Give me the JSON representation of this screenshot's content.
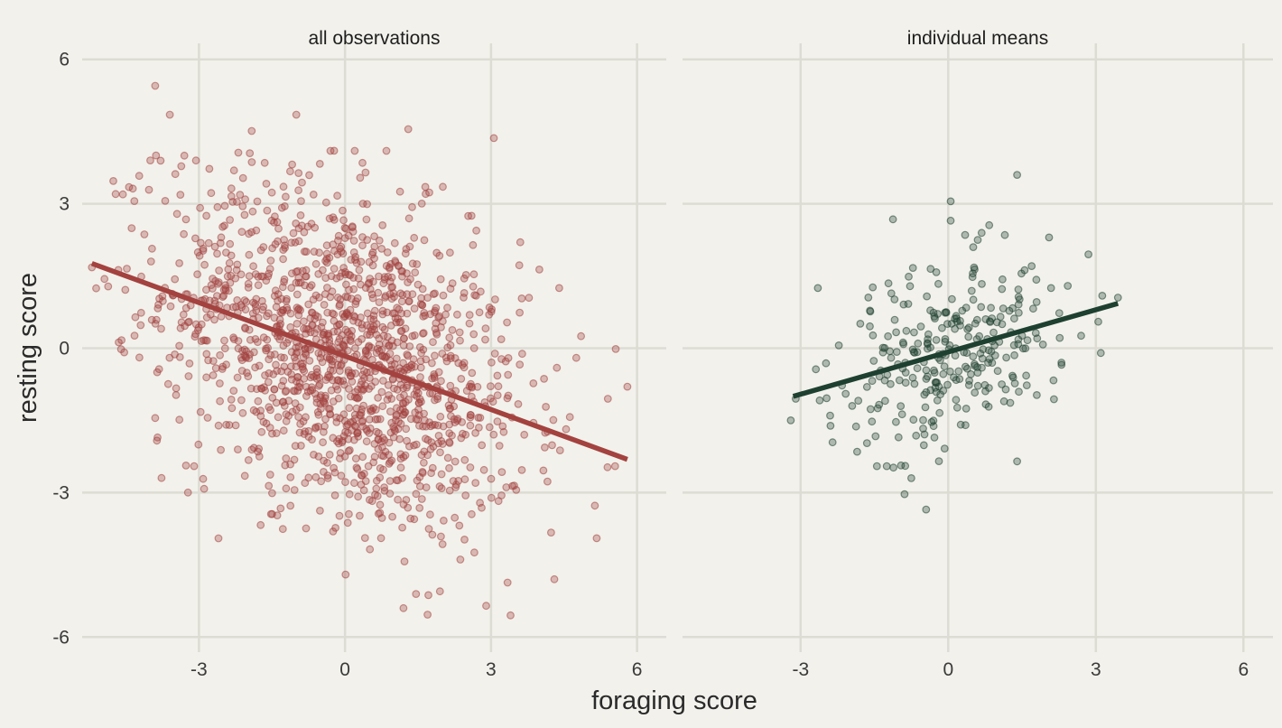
{
  "chart_data": {
    "type": "scatter",
    "xlabel": "foraging score",
    "ylabel": "resting score",
    "xlim": [
      -5.4,
      6.6
    ],
    "ylim": [
      -6.4,
      6.4
    ],
    "x_ticks": [
      "-3",
      "0",
      "3",
      "6"
    ],
    "y_ticks": [
      "6",
      "3",
      "0",
      "-3",
      "-6"
    ],
    "grid": true,
    "panels": [
      {
        "title": "all observations",
        "color": "#a3423f",
        "n_points": 1500,
        "x_range": [
          -5.2,
          5.8
        ],
        "y_range": [
          -5.6,
          5.5
        ],
        "fit_line": {
          "x": [
            -5.2,
            5.8
          ],
          "y": [
            1.76,
            -2.31
          ]
        },
        "points": [
          [
            -3.9,
            5.45
          ],
          [
            -2.6,
            -3.95
          ],
          [
            1.2,
            -5.4
          ],
          [
            3.4,
            -5.55
          ],
          [
            -3.6,
            4.85
          ],
          [
            5.8,
            -0.8
          ],
          [
            5.4,
            -1.05
          ],
          [
            4.3,
            -4.8
          ],
          [
            -4.6,
            -0.02
          ],
          [
            -5.2,
            1.68
          ],
          [
            2.6,
            2.75
          ],
          [
            0.85,
            4.1
          ],
          [
            1.3,
            4.55
          ],
          [
            1.65,
            3.35
          ],
          [
            -1.0,
            4.85
          ],
          [
            -1.65,
            3.85
          ],
          [
            -0.3,
            4.1
          ],
          [
            0.2,
            4.1
          ],
          [
            4.85,
            0.25
          ],
          [
            4.75,
            -0.2
          ],
          [
            -3.9,
            -1.45
          ],
          [
            -3.1,
            -2.45
          ],
          [
            3.6,
            2.2
          ],
          [
            4.4,
            1.25
          ],
          [
            2.9,
            -5.35
          ],
          [
            1.95,
            -5.05
          ],
          [
            -4.0,
            3.9
          ],
          [
            -3.3,
            4.0
          ]
        ]
      },
      {
        "title": "individual means",
        "color": "#1e4030",
        "n_points": 300,
        "x_range": [
          -3.2,
          3.45
        ],
        "y_range": [
          -3.35,
          3.6
        ],
        "fit_line": {
          "x": [
            -3.15,
            3.45
          ],
          "y": [
            -1.0,
            0.93
          ]
        },
        "points": [
          [
            1.4,
            3.6
          ],
          [
            0.05,
            3.05
          ],
          [
            -0.45,
            -3.35
          ],
          [
            -3.2,
            -1.5
          ],
          [
            3.45,
            1.05
          ],
          [
            3.1,
            -0.1
          ],
          [
            2.85,
            1.95
          ],
          [
            -2.65,
            1.25
          ],
          [
            1.4,
            -2.35
          ],
          [
            -0.75,
            -2.7
          ],
          [
            0.6,
            2.25
          ],
          [
            2.05,
            2.3
          ],
          [
            1.15,
            2.35
          ],
          [
            0.05,
            2.65
          ],
          [
            -1.45,
            -2.45
          ],
          [
            -1.25,
            -2.45
          ],
          [
            -2.4,
            -1.4
          ],
          [
            -3.1,
            -1.05
          ],
          [
            3.05,
            0.55
          ],
          [
            2.3,
            -0.3
          ]
        ]
      }
    ]
  }
}
